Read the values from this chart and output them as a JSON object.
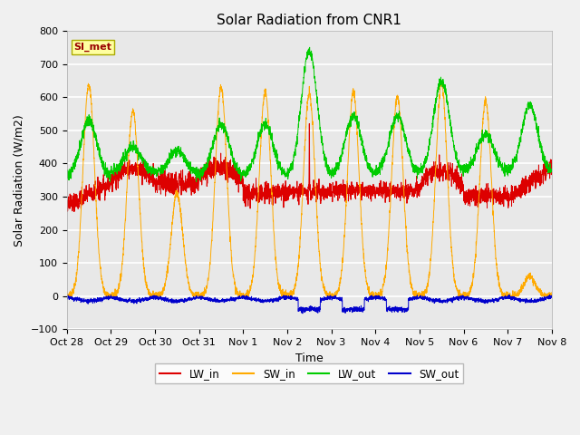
{
  "title": "Solar Radiation from CNR1",
  "xlabel": "Time",
  "ylabel": "Solar Radiation (W/m2)",
  "ylim": [
    -100,
    800
  ],
  "legend_labels": [
    "LW_in",
    "SW_in",
    "LW_out",
    "SW_out"
  ],
  "legend_colors": [
    "#dd0000",
    "#ffaa00",
    "#00cc00",
    "#0000cc"
  ],
  "site_label": "SI_met",
  "xtick_labels": [
    "Oct 28",
    "Oct 29",
    "Oct 30",
    "Oct 31",
    "Nov 1",
    "Nov 2",
    "Nov 3",
    "Nov 4",
    "Nov 5",
    "Nov 6",
    "Nov 7",
    "Nov 8"
  ],
  "n_days": 11,
  "ppd": 288,
  "sw_peaks": [
    640,
    560,
    310,
    630,
    615,
    610,
    615,
    600,
    640,
    590,
    60
  ],
  "lw_out_base": [
    360,
    375,
    370,
    365,
    365,
    360,
    365,
    370,
    370,
    380,
    375
  ],
  "lw_out_peak": [
    530,
    450,
    440,
    520,
    520,
    740,
    545,
    545,
    650,
    490,
    578
  ],
  "lw_in_base": [
    290,
    320,
    340,
    340,
    295,
    310,
    305,
    310,
    315,
    315,
    355
  ]
}
